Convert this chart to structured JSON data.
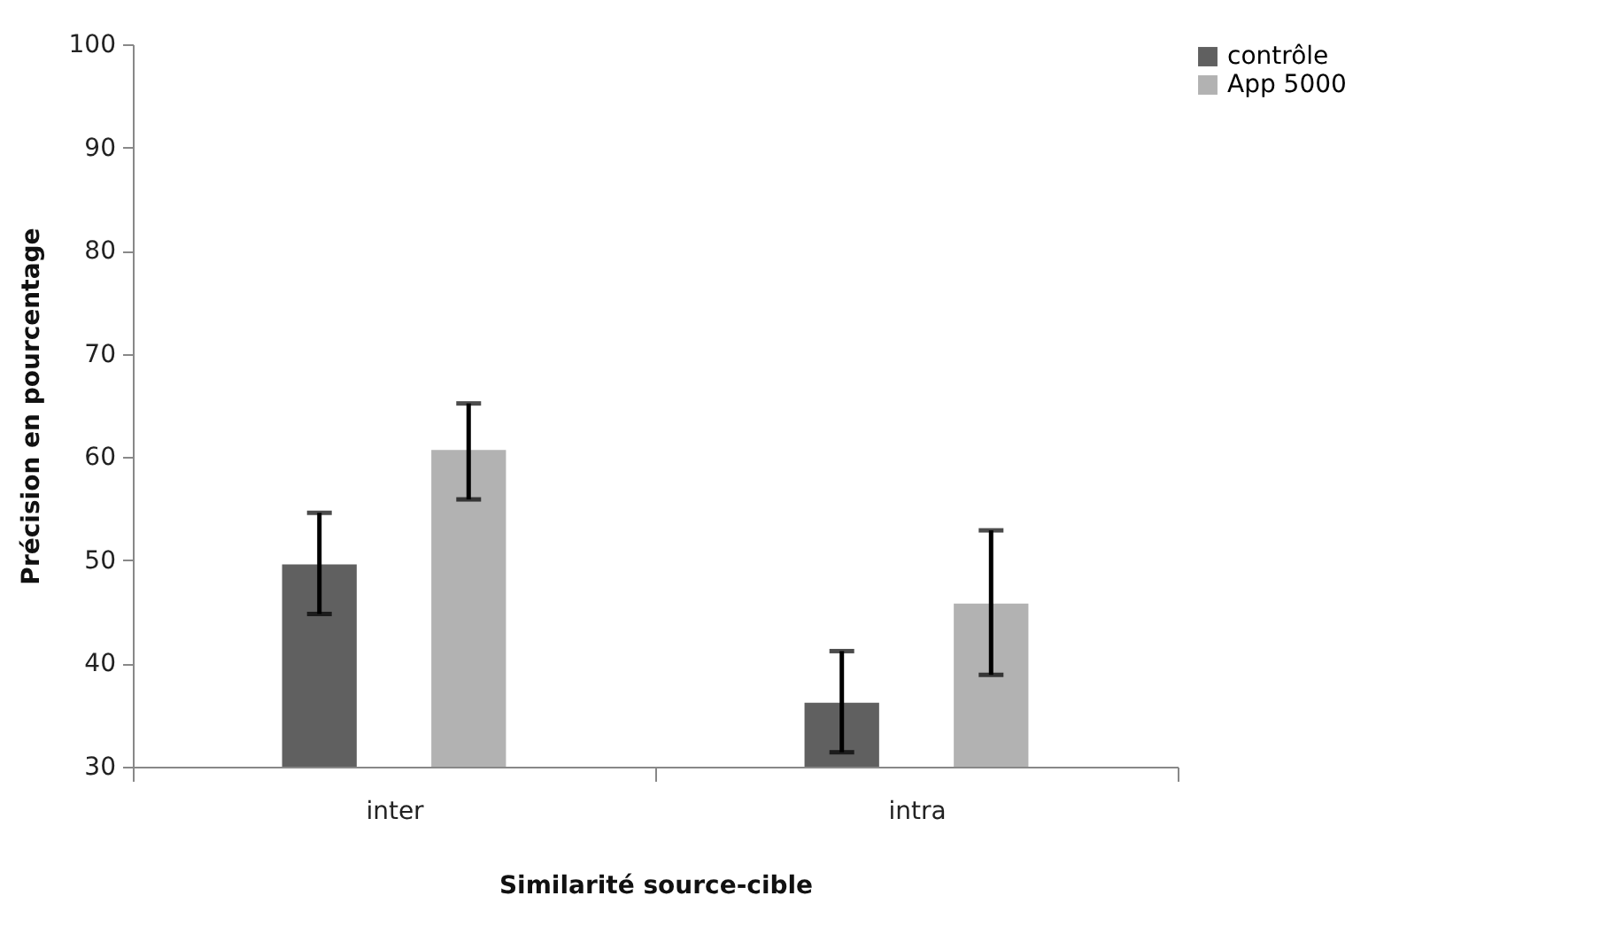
{
  "chart_data": {
    "type": "bar",
    "xlabel": "Similarité source-cible",
    "ylabel": "Précision en pourcentage",
    "categories": [
      "inter",
      "intra"
    ],
    "series": [
      {
        "name": "contrôle",
        "color": "#606060",
        "values": [
          49.6,
          36.2
        ],
        "errors": [
          [
            44.8,
            54.6
          ],
          [
            31.4,
            41.2
          ]
        ]
      },
      {
        "name": "App 5000",
        "color": "#b2b2b2",
        "values": [
          60.7,
          45.8
        ],
        "errors": [
          [
            55.9,
            65.2
          ],
          [
            38.9,
            52.9
          ]
        ]
      }
    ],
    "ylim": [
      30,
      100
    ],
    "yticks": [
      30,
      40,
      50,
      60,
      70,
      80,
      90,
      100
    ],
    "grid": false,
    "legend": "right"
  }
}
